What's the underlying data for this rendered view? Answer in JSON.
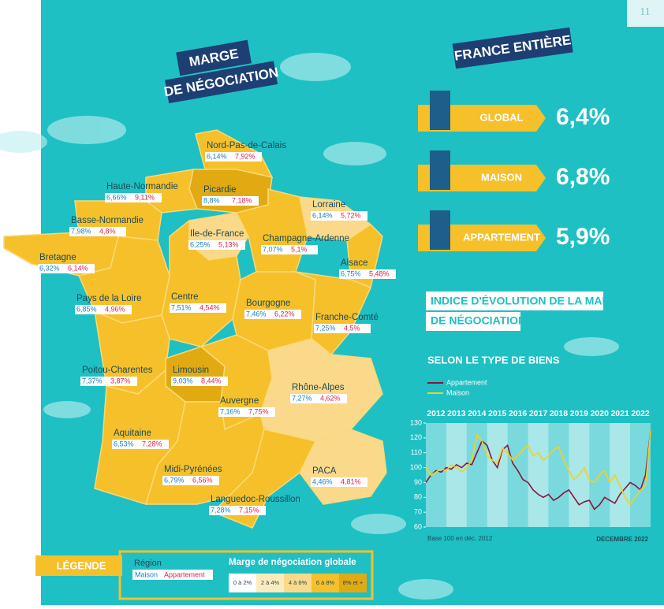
{
  "page_number": "11",
  "map": {
    "title_line1": "MARGE",
    "title_line2": "DE NÉGOCIATION",
    "regions": [
      {
        "name": "Nord-Pas-de-Calais",
        "maison": "6,14%",
        "appartement": "7,92%",
        "color": "#f5c02a"
      },
      {
        "name": "Picardie",
        "maison": "8,8%",
        "appartement": "7,18%",
        "color": "#e2aa12"
      },
      {
        "name": "Haute-Normandie",
        "maison": "6,66%",
        "appartement": "9,11%",
        "color": "#f5c02a"
      },
      {
        "name": "Basse-Normandie",
        "maison": "7,98%",
        "appartement": "4,8%",
        "color": "#f5c02a"
      },
      {
        "name": "Bretagne",
        "maison": "6,32%",
        "appartement": "6,14%",
        "color": "#f5c02a"
      },
      {
        "name": "Ile-de-France",
        "maison": "6,25%",
        "appartement": "5,13%",
        "color": "#fbd98a"
      },
      {
        "name": "Champagne-Ardenne",
        "maison": "7,07%",
        "appartement": "5,1%",
        "color": "#f5c02a"
      },
      {
        "name": "Lorraine",
        "maison": "6,14%",
        "appartement": "5,72%",
        "color": "#fbd98a"
      },
      {
        "name": "Alsace",
        "maison": "6,75%",
        "appartement": "5,48%",
        "color": "#f5c02a"
      },
      {
        "name": "Pays de la Loire",
        "maison": "6,85%",
        "appartement": "4,96%",
        "color": "#f5c02a"
      },
      {
        "name": "Centre",
        "maison": "7,51%",
        "appartement": "4,54%",
        "color": "#f5c02a"
      },
      {
        "name": "Bourgogne",
        "maison": "7,46%",
        "appartement": "6,22%",
        "color": "#f5c02a"
      },
      {
        "name": "Franche-Comté",
        "maison": "7,25%",
        "appartement": "4,5%",
        "color": "#f5c02a"
      },
      {
        "name": "Poitou-Charentes",
        "maison": "7,37%",
        "appartement": "3,87%",
        "color": "#f5c02a"
      },
      {
        "name": "Limousin",
        "maison": "9,03%",
        "appartement": "8,44%",
        "color": "#e2aa12"
      },
      {
        "name": "Auvergne",
        "maison": "7,16%",
        "appartement": "7,75%",
        "color": "#f5c02a"
      },
      {
        "name": "Rhône-Alpes",
        "maison": "7,27%",
        "appartement": "4,62%",
        "color": "#fbd98a"
      },
      {
        "name": "Aquitaine",
        "maison": "6,53%",
        "appartement": "7,28%",
        "color": "#f5c02a"
      },
      {
        "name": "Midi-Pyrénées",
        "maison": "6,79%",
        "appartement": "6,56%",
        "color": "#f5c02a"
      },
      {
        "name": "Languedoc-Roussillon",
        "maison": "7,28%",
        "appartement": "7,15%",
        "color": "#f5c02a"
      },
      {
        "name": "PACA",
        "maison": "4,46%",
        "appartement": "4,81%",
        "color": "#fbd98a"
      }
    ]
  },
  "legend": {
    "title": "LÉGENDE",
    "region": "Région",
    "maison": "Maison",
    "appartement": "Appartement",
    "scale_title": "Marge de négociation globale",
    "buckets": [
      {
        "label": "0 à 2%",
        "color": "#ffffff"
      },
      {
        "label": "2 à 4%",
        "color": "#fdebbd"
      },
      {
        "label": "4 à 6%",
        "color": "#fbd98a"
      },
      {
        "label": "6 à 8%",
        "color": "#f5c02a"
      },
      {
        "label": "8% et +",
        "color": "#e2aa12"
      }
    ]
  },
  "france": {
    "title": "FRANCE ENTIÈRE",
    "rows": [
      {
        "label": "GLOBAL",
        "value": "6,4%"
      },
      {
        "label": "MAISON",
        "value": "6,8%"
      },
      {
        "label": "APPARTEMENT",
        "value": "5,9%"
      }
    ]
  },
  "chart_data": {
    "type": "line",
    "title_line1": "INDICE D'ÉVOLUTION DE LA MARGE",
    "title_line2": "DE NÉGOCIATION",
    "subtitle": "SELON LE TYPE DE BIENS",
    "note": "Base 100 en déc. 2012",
    "date": "DECEMBRE 2022",
    "x": [
      2012,
      2012.25,
      2012.5,
      2012.75,
      2013,
      2013.25,
      2013.5,
      2013.75,
      2014,
      2014.25,
      2014.5,
      2014.75,
      2015,
      2015.25,
      2015.5,
      2015.75,
      2016,
      2016.25,
      2016.5,
      2016.75,
      2017,
      2017.25,
      2017.5,
      2017.75,
      2018,
      2018.25,
      2018.5,
      2018.75,
      2019,
      2019.25,
      2019.5,
      2019.75,
      2020,
      2020.25,
      2020.5,
      2020.75,
      2021,
      2021.25,
      2021.5,
      2021.75,
      2022,
      2022.25,
      2022.5,
      2022.75,
      2023
    ],
    "series": [
      {
        "name": "Appartement",
        "color": "#8b1538",
        "values": [
          90,
          95,
          98,
          97,
          100,
          99,
          102,
          100,
          103,
          102,
          110,
          118,
          115,
          105,
          100,
          112,
          115,
          103,
          98,
          92,
          90,
          85,
          82,
          80,
          82,
          78,
          80,
          83,
          85,
          80,
          75,
          77,
          78,
          72,
          75,
          80,
          78,
          76,
          82,
          86,
          90,
          88,
          85,
          95,
          125
        ]
      },
      {
        "name": "Maison",
        "color": "#f2d21e",
        "values": [
          100,
          95,
          97,
          99,
          98,
          102,
          100,
          97,
          100,
          105,
          122,
          118,
          108,
          105,
          103,
          113,
          110,
          105,
          108,
          112,
          115,
          108,
          110,
          105,
          108,
          112,
          114,
          105,
          98,
          92,
          95,
          100,
          92,
          90,
          95,
          98,
          90,
          95,
          88,
          80,
          75,
          80,
          85,
          88,
          125
        ]
      }
    ],
    "xlim": [
      2012,
      2023
    ],
    "xticks": [
      {
        "value": 2012.5,
        "label": "2012"
      },
      {
        "value": 2013.5,
        "label": "2013"
      },
      {
        "value": 2014.5,
        "label": "2014"
      },
      {
        "value": 2015.5,
        "label": "2015"
      },
      {
        "value": 2016.5,
        "label": "2016"
      },
      {
        "value": 2017.5,
        "label": "2017"
      },
      {
        "value": 2018.5,
        "label": "2018"
      },
      {
        "value": 2019.5,
        "label": "2019"
      },
      {
        "value": 2020.5,
        "label": "2020"
      },
      {
        "value": 2021.5,
        "label": "2021"
      },
      {
        "value": 2022.5,
        "label": "2022"
      }
    ],
    "ylim": [
      60,
      130
    ],
    "yticks": [
      60,
      70,
      80,
      90,
      100,
      110,
      120,
      130
    ]
  }
}
